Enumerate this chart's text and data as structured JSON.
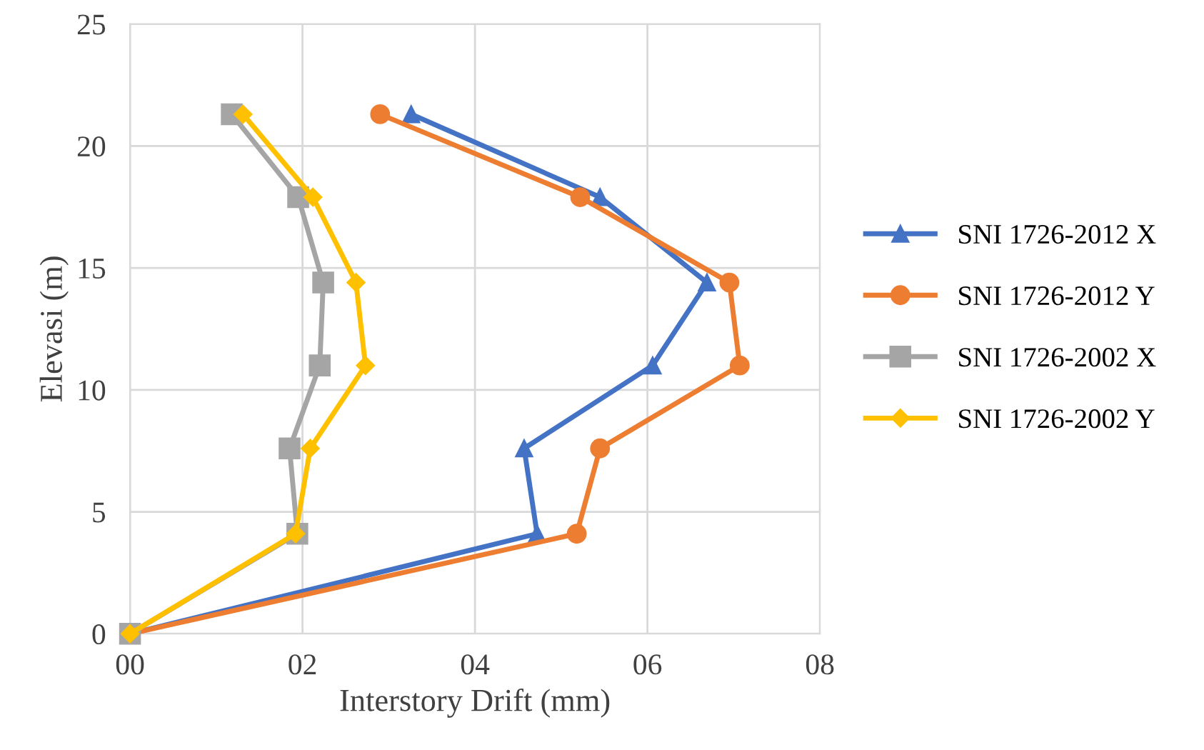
{
  "chart_data": {
    "type": "line",
    "xlabel": "Interstory Drift (mm)",
    "ylabel": "Elevasi (m)",
    "xlim": [
      0,
      8
    ],
    "xticks": [
      {
        "value": 0,
        "label": "00"
      },
      {
        "value": 2,
        "label": "02"
      },
      {
        "value": 4,
        "label": "04"
      },
      {
        "value": 6,
        "label": "06"
      },
      {
        "value": 8,
        "label": "08"
      }
    ],
    "ylim": [
      0,
      25
    ],
    "yticks": [
      0,
      5,
      10,
      15,
      20,
      25
    ],
    "grid": true,
    "legend": "right",
    "series": [
      {
        "name": "SNI 1726-2012 X",
        "color": "#4472c4",
        "marker": "triangle",
        "x": [
          0,
          4.72,
          4.57,
          6.06,
          6.69,
          5.45,
          3.26
        ],
        "values": [
          0,
          4.1,
          7.6,
          11.0,
          14.4,
          17.9,
          21.3
        ]
      },
      {
        "name": "SNI 1726-2012 Y",
        "color": "#ed7d31",
        "marker": "circle",
        "x": [
          0,
          5.18,
          5.45,
          7.07,
          6.95,
          5.22,
          2.9
        ],
        "values": [
          0,
          4.1,
          7.6,
          11.0,
          14.4,
          17.9,
          21.3
        ]
      },
      {
        "name": "SNI 1726-2002 X",
        "color": "#a5a5a5",
        "marker": "square",
        "x": [
          0,
          1.94,
          1.85,
          2.2,
          2.24,
          1.95,
          1.18
        ],
        "values": [
          0,
          4.1,
          7.6,
          11.0,
          14.4,
          17.9,
          21.3
        ]
      },
      {
        "name": "SNI 1726-2002 Y",
        "color": "#ffc000",
        "marker": "diamond",
        "x": [
          0,
          1.92,
          2.09,
          2.73,
          2.62,
          2.12,
          1.31
        ],
        "values": [
          0,
          4.1,
          7.6,
          11.0,
          14.4,
          17.9,
          21.3
        ]
      }
    ]
  }
}
